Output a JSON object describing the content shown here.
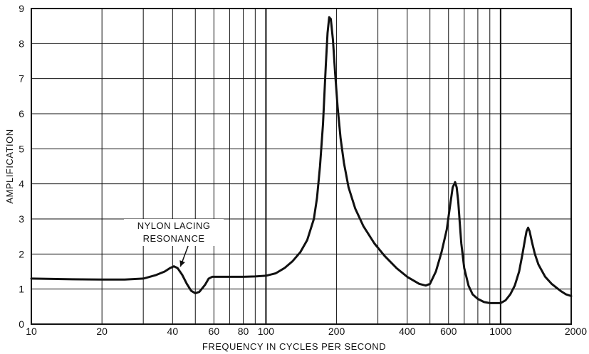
{
  "chart_data": {
    "type": "line",
    "xscale": "log",
    "xlim": [
      10,
      2000
    ],
    "ylim": [
      0,
      9
    ],
    "xlabel": "FREQUENCY IN CYCLES PER SECOND",
    "ylabel": "AMPLIFICATION",
    "x_ticks": [
      10,
      20,
      40,
      60,
      80,
      100,
      200,
      400,
      600,
      1000,
      2000
    ],
    "x_tick_labels": [
      "10",
      "20",
      "40",
      "60",
      "80",
      "100",
      "200",
      "400",
      "600",
      "1000",
      "2000"
    ],
    "y_ticks": [
      0,
      1,
      2,
      3,
      4,
      5,
      6,
      7,
      8,
      9
    ],
    "y_tick_labels": [
      "0",
      "1",
      "2",
      "3",
      "4",
      "5",
      "6",
      "7",
      "8",
      "9"
    ],
    "x_grid": [
      20,
      30,
      40,
      50,
      60,
      70,
      80,
      90,
      100,
      200,
      300,
      400,
      500,
      600,
      700,
      800,
      900,
      1000
    ],
    "x_grid_major": [
      100,
      1000
    ],
    "grid": true,
    "series": [
      {
        "x": [
          10,
          15,
          20,
          25,
          30,
          34,
          37,
          39,
          40.5,
          42,
          44,
          46,
          48,
          50,
          52,
          55,
          57,
          59,
          61,
          65,
          70,
          80,
          90,
          100,
          110,
          120,
          130,
          140,
          150,
          160,
          165,
          170,
          175,
          180,
          183,
          186,
          189,
          193,
          197,
          202,
          208,
          215,
          225,
          240,
          260,
          290,
          320,
          360,
          400,
          450,
          480,
          500,
          530,
          560,
          590,
          610,
          625,
          640,
          650,
          660,
          670,
          680,
          700,
          730,
          760,
          800,
          850,
          900,
          950,
          1000,
          1050,
          1100,
          1150,
          1200,
          1240,
          1270,
          1290,
          1310,
          1330,
          1360,
          1400,
          1450,
          1550,
          1650,
          1800,
          1900,
          2000
        ],
        "y": [
          1.3,
          1.28,
          1.27,
          1.27,
          1.3,
          1.4,
          1.5,
          1.6,
          1.65,
          1.6,
          1.4,
          1.15,
          0.95,
          0.88,
          0.92,
          1.12,
          1.3,
          1.35,
          1.35,
          1.35,
          1.35,
          1.35,
          1.36,
          1.38,
          1.45,
          1.6,
          1.8,
          2.05,
          2.4,
          3.0,
          3.6,
          4.5,
          5.7,
          7.4,
          8.3,
          8.75,
          8.7,
          8.1,
          7.2,
          6.2,
          5.3,
          4.6,
          3.9,
          3.3,
          2.8,
          2.3,
          1.95,
          1.6,
          1.35,
          1.15,
          1.1,
          1.15,
          1.5,
          2.05,
          2.7,
          3.4,
          3.9,
          4.05,
          3.9,
          3.5,
          2.9,
          2.3,
          1.6,
          1.1,
          0.85,
          0.72,
          0.63,
          0.6,
          0.6,
          0.6,
          0.68,
          0.85,
          1.1,
          1.5,
          2.0,
          2.4,
          2.65,
          2.75,
          2.65,
          2.35,
          2.0,
          1.7,
          1.35,
          1.15,
          0.95,
          0.85,
          0.8
        ]
      }
    ],
    "annotations": [
      {
        "lines": [
          "NYLON LACING",
          "RESONANCE"
        ],
        "points_to": {
          "x": 42,
          "y": 1.6
        }
      }
    ]
  }
}
